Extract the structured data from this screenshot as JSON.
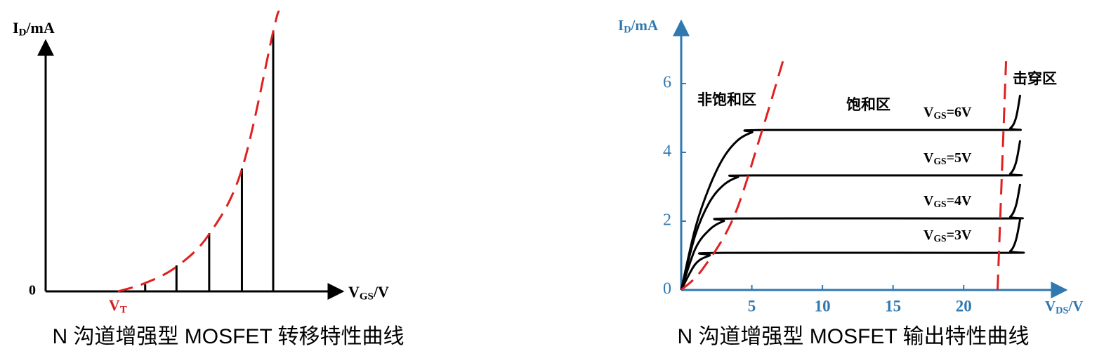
{
  "chart_data": [
    {
      "type": "bar",
      "x_label": "VGS/V",
      "y_label": "ID/mA",
      "caption": "N 沟道增强型 MOSFET 转移特性曲线",
      "x": [
        3.5,
        4.6,
        5.75,
        6.9,
        8.0
      ],
      "values": [
        0.27,
        1.0,
        2.24,
        4.73,
        10.0
      ],
      "color": "#000000",
      "xlim": [
        0,
        10
      ],
      "ylim": [
        0,
        11
      ],
      "yticks": [
        0
      ],
      "axis_color": "#000000",
      "annotations": [
        {
          "text": "VT",
          "x": 2.54,
          "color": "#d42020"
        }
      ],
      "series": [
        {
          "color": "#e02020",
          "dashed": true,
          "x": [
            2.54,
            3.5,
            4.6,
            5.75,
            6.9,
            8.0,
            8.2
          ],
          "values": [
            0,
            0.32,
            0.95,
            2.2,
            4.7,
            10.0,
            10.8
          ]
        }
      ]
    },
    {
      "type": "line",
      "x_label": "VDS/V",
      "y_label": "ID/mA",
      "caption": "N 沟道增强型 MOSFET 输出特性曲线",
      "xlim": [
        0,
        27
      ],
      "ylim": [
        0,
        7.7
      ],
      "xticks": [
        5,
        10,
        15,
        20
      ],
      "yticks": [
        0,
        2,
        4,
        6
      ],
      "axis_color": "#2f78b0",
      "annotations": [
        {
          "text": "非饱和区"
        },
        {
          "text": "饱和区"
        },
        {
          "text": "击穿区"
        }
      ],
      "series": [
        {
          "name": "VGS=6V",
          "color": "#000000",
          "x": [
            0,
            1,
            2,
            3,
            4,
            5,
            6,
            22.6,
            23.3,
            23.7,
            24
          ],
          "values": [
            0,
            1.8,
            3.0,
            3.85,
            4.35,
            4.58,
            4.65,
            4.65,
            4.7,
            5.0,
            5.67
          ]
        },
        {
          "name": "VGS=5V",
          "color": "#000000",
          "x": [
            0,
            1,
            2,
            3,
            4,
            5,
            22.6,
            23.3,
            23.7,
            24
          ],
          "values": [
            0,
            1.6,
            2.55,
            3.05,
            3.28,
            3.33,
            3.33,
            3.38,
            3.7,
            4.35
          ]
        },
        {
          "name": "VGS=4V",
          "color": "#000000",
          "x": [
            0,
            1,
            2,
            3,
            4,
            22.6,
            23.3,
            23.7,
            24
          ],
          "values": [
            0,
            1.2,
            1.75,
            2.0,
            2.08,
            2.08,
            2.13,
            2.45,
            3.08
          ]
        },
        {
          "name": "VGS=3V",
          "color": "#000000",
          "x": [
            0,
            1,
            2,
            3,
            22.6,
            23.3,
            23.7,
            24
          ],
          "values": [
            0,
            0.75,
            1.0,
            1.08,
            1.08,
            1.13,
            1.45,
            2.06
          ]
        },
        {
          "color": "#e02020",
          "dashed": true,
          "x": [
            0,
            1.5,
            3.7,
            5.7,
            7.2
          ],
          "values": [
            0,
            0.6,
            2.1,
            4.6,
            6.65
          ]
        },
        {
          "color": "#e02020",
          "dashed": true,
          "x": [
            22.4,
            23.0
          ],
          "values": [
            0,
            6.65
          ]
        }
      ]
    }
  ]
}
